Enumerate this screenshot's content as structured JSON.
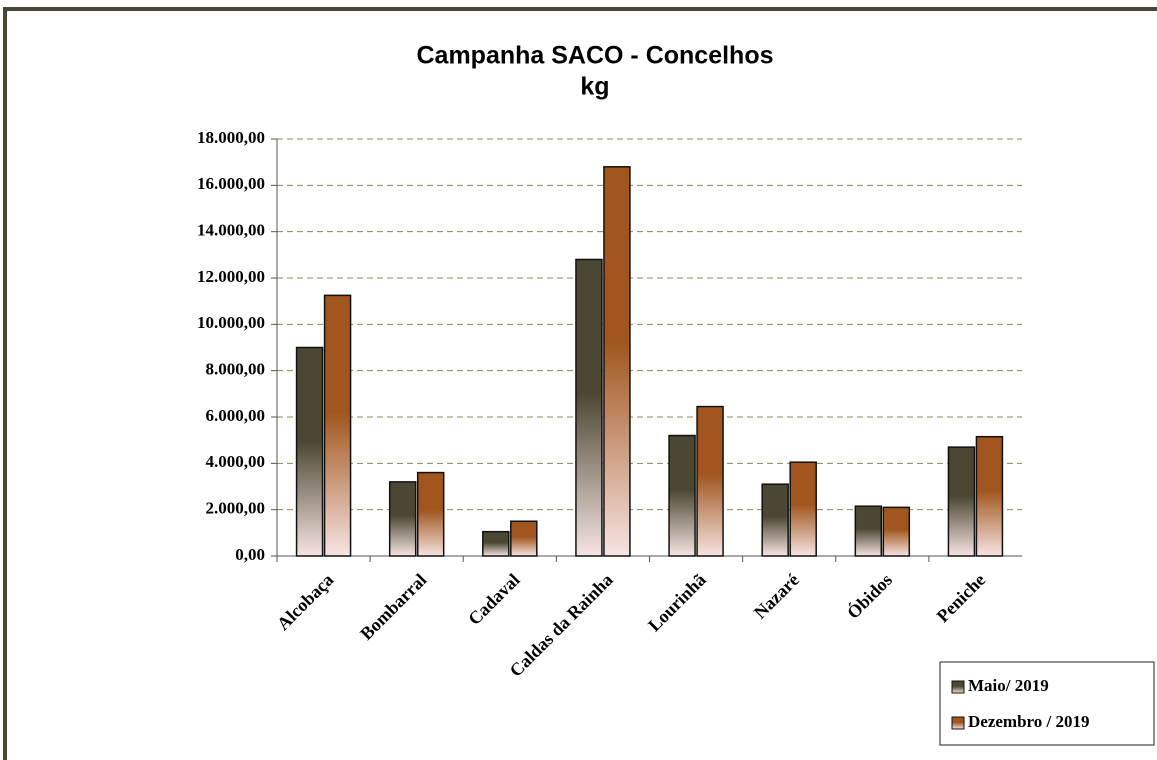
{
  "chart_data": {
    "type": "bar",
    "title": "Campanha SACO - Concelhos",
    "subtitle": "kg",
    "categories": [
      "Alcobaça",
      "Bombarral",
      "Cadaval",
      "Caldas da Rainha",
      "Lourinhã",
      "Nazaré",
      "Óbidos",
      "Peniche"
    ],
    "series": [
      {
        "name": "Maio/ 2019",
        "color": "#4b4732",
        "values": [
          9000,
          3200,
          1050,
          12800,
          5200,
          3100,
          2150,
          4700
        ]
      },
      {
        "name": "Dezembro / 2019",
        "color": "#a0561e",
        "values": [
          11250,
          3600,
          1500,
          16800,
          6450,
          4050,
          2100,
          5150
        ]
      }
    ],
    "ylim": [
      0,
      18000
    ],
    "yticks": [
      {
        "value": 0,
        "label": "0,00"
      },
      {
        "value": 2000,
        "label": "2.000,00"
      },
      {
        "value": 4000,
        "label": "4.000,00"
      },
      {
        "value": 6000,
        "label": "6.000,00"
      },
      {
        "value": 8000,
        "label": "8.000,00"
      },
      {
        "value": 10000,
        "label": "10.000,00"
      },
      {
        "value": 12000,
        "label": "12.000,00"
      },
      {
        "value": 14000,
        "label": "14.000,00"
      },
      {
        "value": 16000,
        "label": "16.000,00"
      },
      {
        "value": 18000,
        "label": "18.000,00"
      }
    ],
    "grid": true,
    "legend": "bottom-right"
  }
}
